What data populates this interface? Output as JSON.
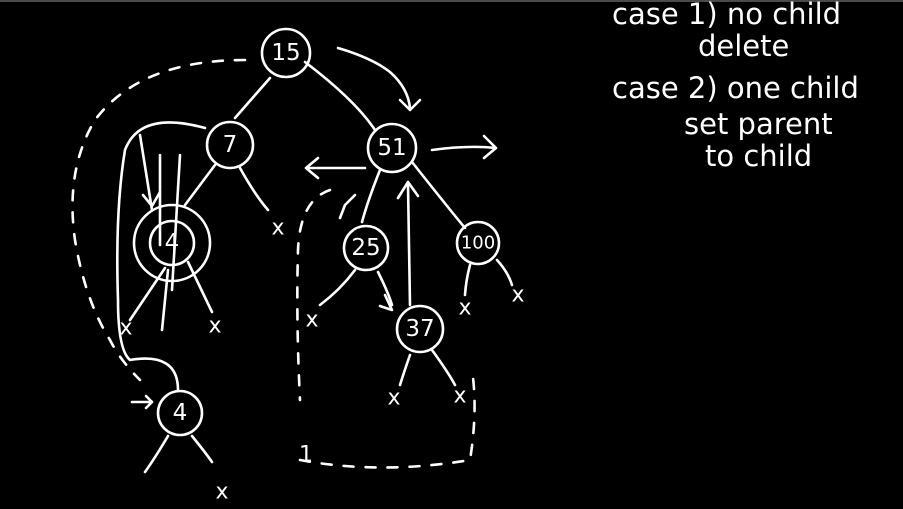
{
  "notes": {
    "case1_heading": "case 1)  no  child",
    "case1_action": "delete",
    "case2_heading": "case 2)  one child",
    "case2_action_line1": "set parent",
    "case2_action_line2": "to child"
  },
  "tree": {
    "nodes": {
      "root": "15",
      "left_child": "7",
      "inner_target": "4",
      "moved_copy": "4",
      "right_child": "51",
      "node_25": "25",
      "node_37": "37",
      "node_100": "100"
    },
    "null_marker": "x",
    "dash_marker": "1"
  },
  "colors": {
    "background": "#000000",
    "ink": "#ffffff"
  }
}
